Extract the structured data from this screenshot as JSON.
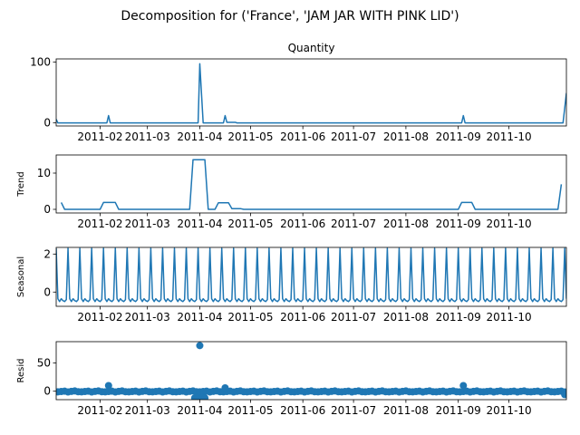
{
  "chart_data": {
    "type": "line",
    "suptitle": "Decomposition for ('France', 'JAM JAR WITH PINK LID')",
    "x_domain": [
      "2011-01-06",
      "2011-11-04"
    ],
    "x_tick_labels": [
      "2011-02",
      "2011-03",
      "2011-04",
      "2011-05",
      "2011-06",
      "2011-07",
      "2011-08",
      "2011-09",
      "2011-10"
    ],
    "x_tick_dates": [
      "2011-02-01",
      "2011-03-01",
      "2011-04-01",
      "2011-05-01",
      "2011-06-01",
      "2011-07-01",
      "2011-08-01",
      "2011-09-01",
      "2011-10-01"
    ],
    "panels": [
      {
        "key": "observed",
        "title": "Quantity",
        "ylabel": "",
        "style": "line",
        "ylim": [
          -5,
          105
        ],
        "yticks": [
          0,
          100
        ],
        "points": [
          [
            "2011-01-06",
            6
          ],
          [
            "2011-01-07",
            0
          ],
          [
            "2011-02-05",
            0
          ],
          [
            "2011-02-06",
            12
          ],
          [
            "2011-02-07",
            0
          ],
          [
            "2011-03-31",
            0
          ],
          [
            "2011-04-01",
            97
          ],
          [
            "2011-04-03",
            0
          ],
          [
            "2011-04-15",
            0
          ],
          [
            "2011-04-16",
            12
          ],
          [
            "2011-04-17",
            1
          ],
          [
            "2011-04-22",
            1
          ],
          [
            "2011-04-23",
            0
          ],
          [
            "2011-09-03",
            0
          ],
          [
            "2011-09-04",
            12
          ],
          [
            "2011-09-05",
            0
          ],
          [
            "2011-11-02",
            0
          ],
          [
            "2011-11-04",
            49
          ]
        ]
      },
      {
        "key": "trend",
        "title": "",
        "ylabel": "Trend",
        "style": "line",
        "ylim": [
          -1,
          15
        ],
        "yticks": [
          0,
          10
        ],
        "points": [
          [
            "2011-01-09",
            1.9
          ],
          [
            "2011-01-11",
            0
          ],
          [
            "2011-02-01",
            0
          ],
          [
            "2011-02-03",
            1.9
          ],
          [
            "2011-02-10",
            1.9
          ],
          [
            "2011-02-12",
            0
          ],
          [
            "2011-03-26",
            0
          ],
          [
            "2011-03-28",
            13.7
          ],
          [
            "2011-04-04",
            13.7
          ],
          [
            "2011-04-06",
            0
          ],
          [
            "2011-04-10",
            0
          ],
          [
            "2011-04-12",
            1.8
          ],
          [
            "2011-04-18",
            1.8
          ],
          [
            "2011-04-20",
            0.2
          ],
          [
            "2011-04-25",
            0.2
          ],
          [
            "2011-04-27",
            0
          ],
          [
            "2011-09-01",
            0
          ],
          [
            "2011-09-03",
            1.9
          ],
          [
            "2011-09-09",
            1.9
          ],
          [
            "2011-09-11",
            0
          ],
          [
            "2011-10-30",
            0
          ],
          [
            "2011-11-01",
            6.9
          ]
        ]
      },
      {
        "key": "seasonal",
        "title": "",
        "ylabel": "Seasonal",
        "style": "periodic",
        "ylim": [
          -0.75,
          2.35
        ],
        "yticks": [
          0,
          2
        ],
        "start": "2011-01-06",
        "end": "2011-11-04",
        "period_days": 7,
        "pattern": [
          2.3,
          -0.35,
          -0.5,
          -0.35,
          -0.45,
          -0.5,
          -0.4
        ]
      },
      {
        "key": "resid",
        "title": "",
        "ylabel": "Resid",
        "style": "dots",
        "ylim": [
          -15,
          88
        ],
        "yticks": [
          0,
          50
        ],
        "baseline_start": "2011-01-07",
        "baseline_end": "2011-11-03",
        "baseline_step_days": 2,
        "baseline_values": [
          -1.2,
          -0.6,
          0.0,
          -1.4,
          -0.3,
          0.4,
          -0.9
        ],
        "points": [
          [
            "2011-02-06",
            10
          ],
          [
            "2011-03-29",
            -12
          ],
          [
            "2011-03-30",
            -11
          ],
          [
            "2011-03-31",
            -12
          ],
          [
            "2011-04-01",
            81
          ],
          [
            "2011-04-02",
            -12
          ],
          [
            "2011-04-03",
            -11
          ],
          [
            "2011-04-04",
            -12
          ],
          [
            "2011-04-16",
            6
          ],
          [
            "2011-09-04",
            10
          ],
          [
            "2011-11-03",
            -6
          ]
        ]
      }
    ]
  }
}
